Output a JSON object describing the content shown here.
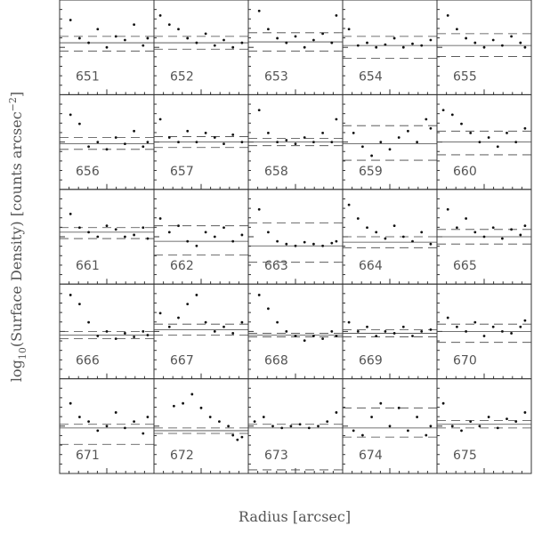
{
  "chart_data": {
    "type": "scatter",
    "x_label": "Radius [arcsec]",
    "y_label": {
      "parts": [
        "log",
        "10",
        "(Surface Density) [counts arcsec",
        "−2",
        "]"
      ]
    },
    "xlim": [
      0,
      1
    ],
    "ylim": [
      0,
      1
    ],
    "panels": [
      {
        "label": "651",
        "x": [
          0.1,
          0.2,
          0.3,
          0.4,
          0.5,
          0.6,
          0.7,
          0.8,
          0.9,
          0.95
        ],
        "values": [
          0.8,
          0.6,
          0.55,
          0.7,
          0.5,
          0.62,
          0.58,
          0.75,
          0.52,
          0.6
        ],
        "solid": 0.55,
        "dashed": [
          0.62,
          0.46
        ]
      },
      {
        "label": "652",
        "x": [
          0.05,
          0.15,
          0.25,
          0.35,
          0.45,
          0.55,
          0.65,
          0.75,
          0.85,
          0.95
        ],
        "values": [
          0.85,
          0.75,
          0.7,
          0.6,
          0.55,
          0.65,
          0.52,
          0.58,
          0.5,
          0.55
        ],
        "solid": 0.55,
        "dashed": [
          0.62,
          0.48
        ]
      },
      {
        "label": "653",
        "x": [
          0.1,
          0.2,
          0.3,
          0.4,
          0.5,
          0.6,
          0.7,
          0.8,
          0.9,
          0.95
        ],
        "values": [
          0.9,
          0.7,
          0.6,
          0.55,
          0.62,
          0.5,
          0.58,
          0.65,
          0.55,
          0.85
        ],
        "solid": 0.56,
        "dashed": [
          0.66,
          0.46
        ]
      },
      {
        "label": "654",
        "x": [
          0.05,
          0.15,
          0.25,
          0.35,
          0.45,
          0.55,
          0.65,
          0.75,
          0.85,
          0.95
        ],
        "values": [
          0.7,
          0.52,
          0.55,
          0.5,
          0.53,
          0.6,
          0.5,
          0.54,
          0.52,
          0.58
        ],
        "solid": 0.52,
        "dashed": [
          0.62,
          0.38
        ]
      },
      {
        "label": "655",
        "x": [
          0.1,
          0.2,
          0.3,
          0.4,
          0.5,
          0.6,
          0.7,
          0.8,
          0.9,
          0.95
        ],
        "values": [
          0.85,
          0.7,
          0.6,
          0.55,
          0.5,
          0.58,
          0.52,
          0.62,
          0.55,
          0.5
        ],
        "solid": 0.52,
        "dashed": [
          0.65,
          0.4
        ]
      },
      {
        "label": "656",
        "x": [
          0.1,
          0.2,
          0.3,
          0.4,
          0.5,
          0.6,
          0.7,
          0.8,
          0.9,
          0.95
        ],
        "values": [
          0.8,
          0.7,
          0.45,
          0.5,
          0.42,
          0.55,
          0.48,
          0.62,
          0.45,
          0.5
        ],
        "solid": 0.48,
        "dashed": [
          0.55,
          0.42
        ]
      },
      {
        "label": "657",
        "x": [
          0.05,
          0.15,
          0.25,
          0.35,
          0.45,
          0.55,
          0.65,
          0.75,
          0.85,
          0.95
        ],
        "values": [
          0.75,
          0.55,
          0.5,
          0.62,
          0.5,
          0.6,
          0.55,
          0.48,
          0.58,
          0.5
        ],
        "solid": 0.5,
        "dashed": [
          0.56,
          0.44
        ]
      },
      {
        "label": "658",
        "x": [
          0.1,
          0.2,
          0.3,
          0.4,
          0.5,
          0.6,
          0.7,
          0.8,
          0.9,
          0.95
        ],
        "values": [
          0.85,
          0.6,
          0.5,
          0.52,
          0.48,
          0.55,
          0.5,
          0.6,
          0.5,
          0.75
        ],
        "solid": 0.5,
        "dashed": [
          0.54,
          0.46
        ]
      },
      {
        "label": "659",
        "x": [
          0.1,
          0.2,
          0.3,
          0.4,
          0.5,
          0.6,
          0.7,
          0.8,
          0.9,
          0.95
        ],
        "values": [
          0.6,
          0.45,
          0.35,
          0.5,
          0.42,
          0.55,
          0.62,
          0.5,
          0.75,
          0.65
        ],
        "solid": 0.48,
        "dashed": [
          0.68,
          0.3
        ]
      },
      {
        "label": "660",
        "x": [
          0.05,
          0.15,
          0.25,
          0.35,
          0.45,
          0.55,
          0.65,
          0.75,
          0.85,
          0.95
        ],
        "values": [
          0.85,
          0.8,
          0.7,
          0.6,
          0.5,
          0.55,
          0.45,
          0.6,
          0.5,
          0.65
        ],
        "solid": 0.5,
        "dashed": [
          0.62,
          0.36
        ]
      },
      {
        "label": "661",
        "x": [
          0.1,
          0.2,
          0.3,
          0.4,
          0.5,
          0.6,
          0.7,
          0.8,
          0.9,
          0.95
        ],
        "values": [
          0.75,
          0.6,
          0.55,
          0.5,
          0.62,
          0.58,
          0.5,
          0.52,
          0.6,
          0.48
        ],
        "solid": 0.55,
        "dashed": [
          0.6,
          0.48
        ]
      },
      {
        "label": "662",
        "x": [
          0.05,
          0.15,
          0.25,
          0.35,
          0.45,
          0.55,
          0.65,
          0.75,
          0.85,
          0.95
        ],
        "values": [
          0.7,
          0.55,
          0.62,
          0.45,
          0.4,
          0.55,
          0.5,
          0.6,
          0.45,
          0.52
        ],
        "solid": 0.45,
        "dashed": [
          0.62,
          0.3
        ]
      },
      {
        "label": "663",
        "x": [
          0.1,
          0.2,
          0.3,
          0.4,
          0.5,
          0.6,
          0.7,
          0.8,
          0.9,
          0.95
        ],
        "values": [
          0.8,
          0.55,
          0.45,
          0.42,
          0.4,
          0.44,
          0.42,
          0.4,
          0.43,
          0.45
        ],
        "solid": 0.4,
        "dashed": [
          0.65,
          0.22
        ]
      },
      {
        "label": "664",
        "x": [
          0.05,
          0.15,
          0.25,
          0.35,
          0.45,
          0.55,
          0.65,
          0.75,
          0.85,
          0.95
        ],
        "values": [
          0.85,
          0.7,
          0.6,
          0.55,
          0.48,
          0.62,
          0.5,
          0.45,
          0.55,
          0.42
        ],
        "solid": 0.44,
        "dashed": [
          0.5,
          0.38
        ]
      },
      {
        "label": "665",
        "x": [
          0.1,
          0.2,
          0.3,
          0.4,
          0.5,
          0.6,
          0.7,
          0.8,
          0.9,
          0.95
        ],
        "values": [
          0.8,
          0.6,
          0.7,
          0.55,
          0.5,
          0.6,
          0.48,
          0.58,
          0.52,
          0.62
        ],
        "solid": 0.5,
        "dashed": [
          0.58,
          0.42
        ]
      },
      {
        "label": "666",
        "x": [
          0.1,
          0.2,
          0.3,
          0.4,
          0.5,
          0.6,
          0.7,
          0.8,
          0.9,
          0.95
        ],
        "values": [
          0.9,
          0.8,
          0.6,
          0.45,
          0.5,
          0.42,
          0.48,
          0.44,
          0.5,
          0.46
        ],
        "solid": 0.46,
        "dashed": [
          0.5,
          0.42
        ]
      },
      {
        "label": "667",
        "x": [
          0.05,
          0.15,
          0.25,
          0.35,
          0.45,
          0.55,
          0.65,
          0.75,
          0.85,
          0.95
        ],
        "values": [
          0.7,
          0.55,
          0.65,
          0.8,
          0.9,
          0.6,
          0.5,
          0.55,
          0.48,
          0.6
        ],
        "solid": 0.52,
        "dashed": [
          0.58,
          0.46
        ]
      },
      {
        "label": "668",
        "x": [
          0.1,
          0.2,
          0.3,
          0.4,
          0.5,
          0.6,
          0.7,
          0.8,
          0.9,
          0.95
        ],
        "values": [
          0.9,
          0.75,
          0.6,
          0.5,
          0.45,
          0.4,
          0.45,
          0.42,
          0.5,
          0.45
        ],
        "solid": 0.46,
        "dashed": [
          0.48,
          0.44
        ]
      },
      {
        "label": "669",
        "x": [
          0.05,
          0.15,
          0.25,
          0.35,
          0.45,
          0.55,
          0.65,
          0.75,
          0.85,
          0.95
        ],
        "values": [
          0.6,
          0.5,
          0.55,
          0.45,
          0.5,
          0.48,
          0.55,
          0.45,
          0.5,
          0.52
        ],
        "solid": 0.48,
        "dashed": [
          0.52,
          0.44
        ]
      },
      {
        "label": "670",
        "x": [
          0.1,
          0.2,
          0.3,
          0.4,
          0.5,
          0.6,
          0.7,
          0.8,
          0.9,
          0.95
        ],
        "values": [
          0.65,
          0.55,
          0.5,
          0.6,
          0.45,
          0.55,
          0.5,
          0.48,
          0.55,
          0.62
        ],
        "solid": 0.5,
        "dashed": [
          0.58,
          0.38
        ]
      },
      {
        "label": "671",
        "x": [
          0.1,
          0.2,
          0.3,
          0.4,
          0.5,
          0.6,
          0.7,
          0.8,
          0.9,
          0.95
        ],
        "values": [
          0.75,
          0.6,
          0.55,
          0.45,
          0.5,
          0.65,
          0.48,
          0.55,
          0.42,
          0.6
        ],
        "solid": 0.48,
        "dashed": [
          0.52,
          0.3
        ]
      },
      {
        "label": "672",
        "x": [
          0.2,
          0.3,
          0.4,
          0.5,
          0.6,
          0.7,
          0.8,
          0.85,
          0.9,
          0.95
        ],
        "values": [
          0.72,
          0.75,
          0.85,
          0.7,
          0.6,
          0.55,
          0.5,
          0.4,
          0.35,
          0.38
        ],
        "solid": 0.45,
        "dashed": [
          0.48,
          0.42
        ]
      },
      {
        "label": "673",
        "x": [
          0.05,
          0.15,
          0.25,
          0.35,
          0.45,
          0.55,
          0.65,
          0.75,
          0.85,
          0.95
        ],
        "values": [
          0.55,
          0.6,
          0.5,
          0.48,
          0.5,
          0.52,
          0.48,
          0.5,
          0.55,
          0.65
        ],
        "solid": 0.48,
        "dashed": [
          0.52,
          0.02
        ]
      },
      {
        "label": "674",
        "x": [
          0.1,
          0.2,
          0.3,
          0.4,
          0.5,
          0.6,
          0.7,
          0.8,
          0.9,
          0.95
        ],
        "values": [
          0.45,
          0.4,
          0.6,
          0.75,
          0.5,
          0.7,
          0.45,
          0.6,
          0.4,
          0.5
        ],
        "solid": 0.48,
        "dashed": [
          0.7,
          0.38
        ]
      },
      {
        "label": "675",
        "x": [
          0.05,
          0.15,
          0.25,
          0.35,
          0.45,
          0.55,
          0.65,
          0.75,
          0.85,
          0.95
        ],
        "values": [
          0.75,
          0.5,
          0.45,
          0.55,
          0.5,
          0.6,
          0.48,
          0.58,
          0.55,
          0.65
        ],
        "solid": 0.52,
        "dashed": [
          0.56,
          0.48
        ]
      }
    ]
  }
}
